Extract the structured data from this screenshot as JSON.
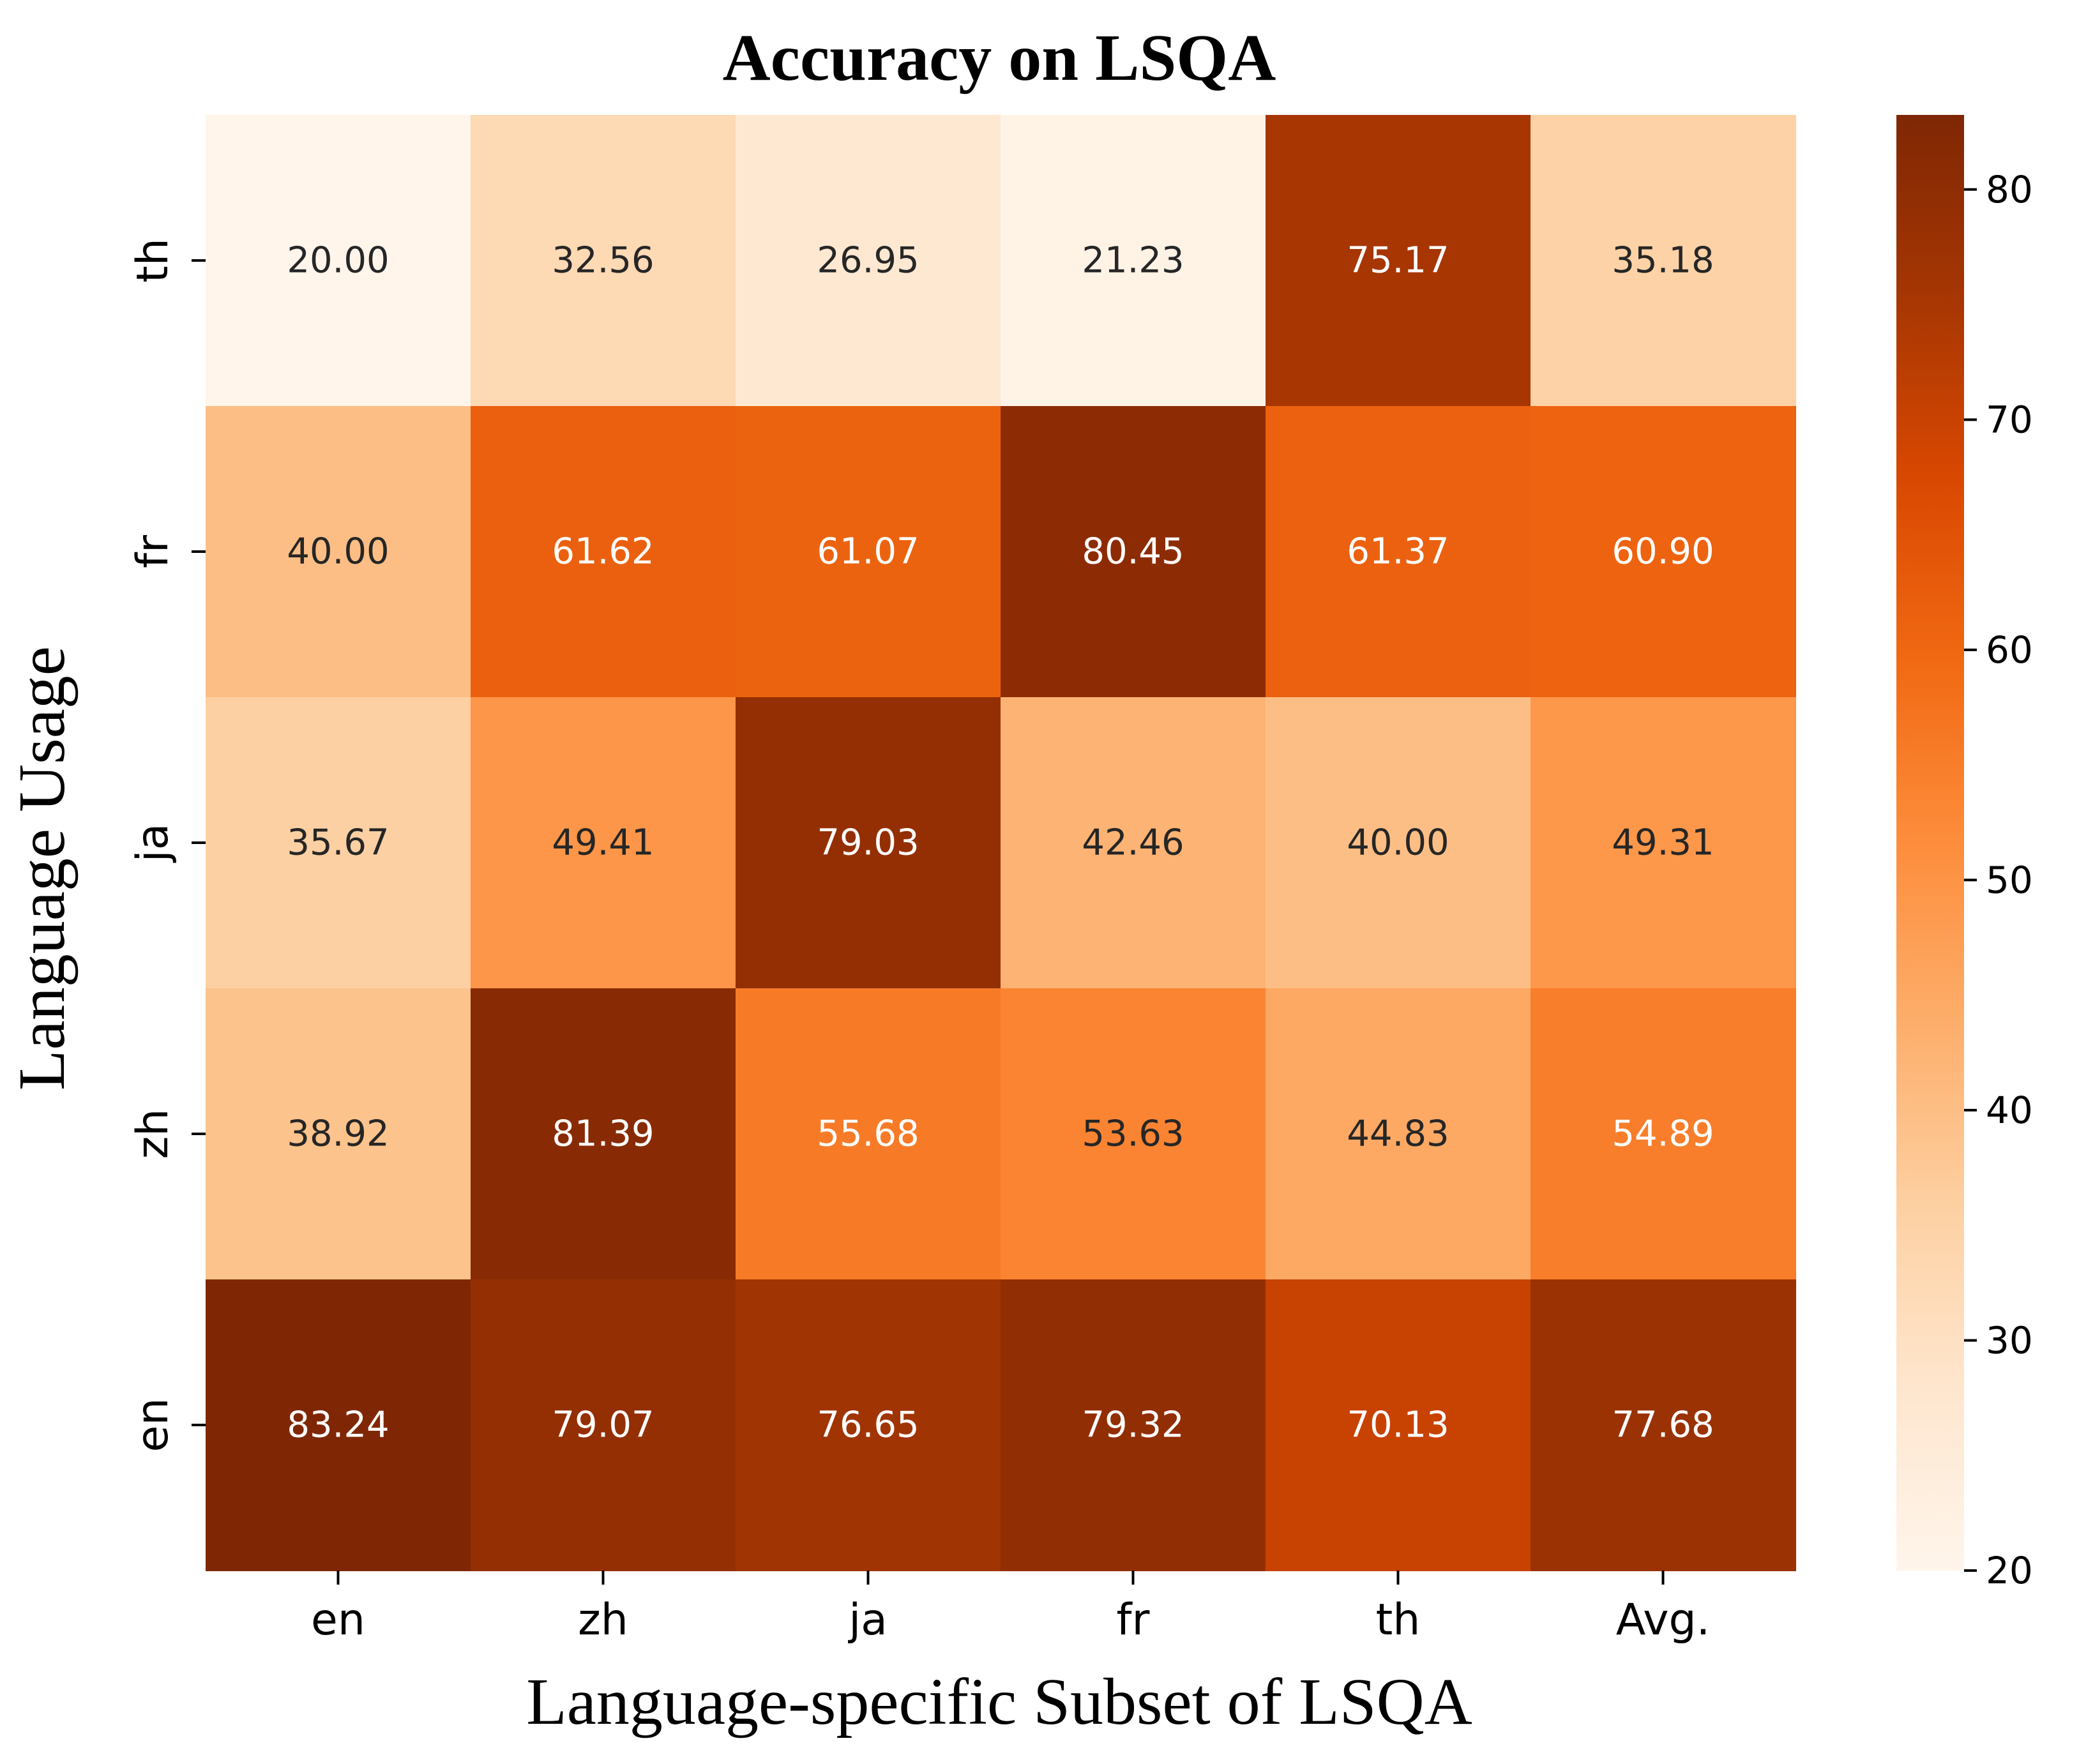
{
  "chart_data": {
    "type": "heatmap",
    "title": "Accuracy on LSQA",
    "xlabel": "Language-specific Subset of LSQA",
    "ylabel": "Language Usage",
    "x_categories": [
      "en",
      "zh",
      "ja",
      "fr",
      "th",
      "Avg."
    ],
    "y_categories": [
      "th",
      "fr",
      "ja",
      "zh",
      "en"
    ],
    "values": [
      [
        20.0,
        32.56,
        26.95,
        21.23,
        75.17,
        35.18
      ],
      [
        40.0,
        61.62,
        61.07,
        80.45,
        61.37,
        60.9
      ],
      [
        35.67,
        49.41,
        79.03,
        42.46,
        40.0,
        49.31
      ],
      [
        38.92,
        81.39,
        55.68,
        53.63,
        44.83,
        54.89
      ],
      [
        83.24,
        79.07,
        76.65,
        79.32,
        70.13,
        77.68
      ]
    ],
    "value_labels": [
      [
        "20.00",
        "32.56",
        "26.95",
        "21.23",
        "75.17",
        "35.18"
      ],
      [
        "40.00",
        "61.62",
        "61.07",
        "80.45",
        "61.37",
        "60.90"
      ],
      [
        "35.67",
        "49.41",
        "79.03",
        "42.46",
        "40.00",
        "49.31"
      ],
      [
        "38.92",
        "81.39",
        "55.68",
        "53.63",
        "44.83",
        "54.89"
      ],
      [
        "83.24",
        "79.07",
        "76.65",
        "79.32",
        "70.13",
        "77.68"
      ]
    ],
    "colormap": "Oranges",
    "colormap_stops": [
      "#fff5eb",
      "#fee6ce",
      "#fdd0a2",
      "#fdae6b",
      "#fd8d3c",
      "#f16913",
      "#d94801",
      "#a63603",
      "#7f2704"
    ],
    "color_range": [
      20.0,
      83.24
    ],
    "colorbar_ticks": [
      20,
      30,
      40,
      50,
      60,
      70,
      80
    ],
    "colorbar_tick_labels": [
      "20",
      "30",
      "40",
      "50",
      "60",
      "70",
      "80"
    ],
    "colorbar_placement": "right",
    "grid": false
  }
}
